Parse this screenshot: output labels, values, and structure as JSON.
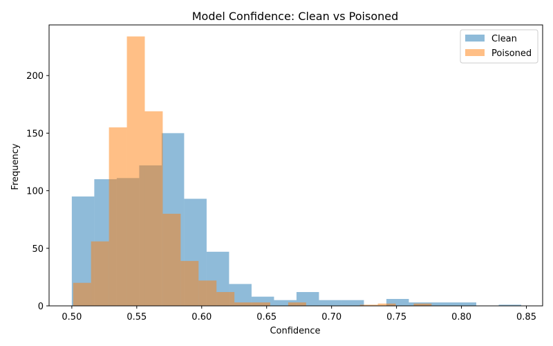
{
  "chart_data": {
    "type": "bar",
    "title": "Model Confidence: Clean vs Poisoned",
    "xlabel": "Confidence",
    "ylabel": "Frequency",
    "xlim": [
      0.4825,
      0.8625
    ],
    "ylim": [
      0,
      244
    ],
    "xticks": [
      0.5,
      0.55,
      0.6,
      0.65,
      0.7,
      0.75,
      0.8,
      0.85
    ],
    "xtick_labels": [
      "0.50",
      "0.55",
      "0.60",
      "0.65",
      "0.70",
      "0.75",
      "0.80",
      "0.85"
    ],
    "yticks": [
      0,
      50,
      100,
      150,
      200
    ],
    "ytick_labels": [
      "0",
      "50",
      "100",
      "150",
      "200"
    ],
    "grid": false,
    "legend_position": "top-right",
    "series": [
      {
        "name": "Clean",
        "color": "#1f77b4",
        "opacity": 0.5,
        "bins": [
          {
            "x0": 0.5,
            "x1": 0.5173,
            "count": 95
          },
          {
            "x0": 0.5173,
            "x1": 0.5346,
            "count": 110
          },
          {
            "x0": 0.5346,
            "x1": 0.5519,
            "count": 111
          },
          {
            "x0": 0.5519,
            "x1": 0.5692,
            "count": 122
          },
          {
            "x0": 0.5692,
            "x1": 0.5865,
            "count": 150
          },
          {
            "x0": 0.5865,
            "x1": 0.6038,
            "count": 93
          },
          {
            "x0": 0.6038,
            "x1": 0.6211,
            "count": 47
          },
          {
            "x0": 0.6211,
            "x1": 0.6384,
            "count": 19
          },
          {
            "x0": 0.6384,
            "x1": 0.6557,
            "count": 8
          },
          {
            "x0": 0.6557,
            "x1": 0.673,
            "count": 5
          },
          {
            "x0": 0.673,
            "x1": 0.6903,
            "count": 12
          },
          {
            "x0": 0.6903,
            "x1": 0.7076,
            "count": 5
          },
          {
            "x0": 0.7076,
            "x1": 0.7249,
            "count": 5
          },
          {
            "x0": 0.7249,
            "x1": 0.7422,
            "count": 0
          },
          {
            "x0": 0.7422,
            "x1": 0.7595,
            "count": 6
          },
          {
            "x0": 0.7595,
            "x1": 0.7768,
            "count": 3
          },
          {
            "x0": 0.7768,
            "x1": 0.7941,
            "count": 3
          },
          {
            "x0": 0.7941,
            "x1": 0.8114,
            "count": 3
          },
          {
            "x0": 0.8114,
            "x1": 0.8287,
            "count": 0
          },
          {
            "x0": 0.8287,
            "x1": 0.846,
            "count": 1
          }
        ]
      },
      {
        "name": "Poisoned",
        "color": "#ff7f0e",
        "opacity": 0.5,
        "bins": [
          {
            "x0": 0.501,
            "x1": 0.5148,
            "count": 20
          },
          {
            "x0": 0.5148,
            "x1": 0.5286,
            "count": 56
          },
          {
            "x0": 0.5286,
            "x1": 0.5424,
            "count": 155
          },
          {
            "x0": 0.5424,
            "x1": 0.5562,
            "count": 234
          },
          {
            "x0": 0.5562,
            "x1": 0.57,
            "count": 169
          },
          {
            "x0": 0.57,
            "x1": 0.5838,
            "count": 80
          },
          {
            "x0": 0.5838,
            "x1": 0.5976,
            "count": 39
          },
          {
            "x0": 0.5976,
            "x1": 0.6114,
            "count": 22
          },
          {
            "x0": 0.6114,
            "x1": 0.6252,
            "count": 12
          },
          {
            "x0": 0.6252,
            "x1": 0.639,
            "count": 3
          },
          {
            "x0": 0.639,
            "x1": 0.6528,
            "count": 3
          },
          {
            "x0": 0.6528,
            "x1": 0.6666,
            "count": 0
          },
          {
            "x0": 0.6666,
            "x1": 0.6804,
            "count": 3
          },
          {
            "x0": 0.6804,
            "x1": 0.6942,
            "count": 0
          },
          {
            "x0": 0.6942,
            "x1": 0.708,
            "count": 0
          },
          {
            "x0": 0.708,
            "x1": 0.7218,
            "count": 0
          },
          {
            "x0": 0.7218,
            "x1": 0.7356,
            "count": 1
          },
          {
            "x0": 0.7356,
            "x1": 0.7494,
            "count": 2
          },
          {
            "x0": 0.7494,
            "x1": 0.7632,
            "count": 0
          },
          {
            "x0": 0.7632,
            "x1": 0.777,
            "count": 2
          }
        ]
      }
    ]
  }
}
